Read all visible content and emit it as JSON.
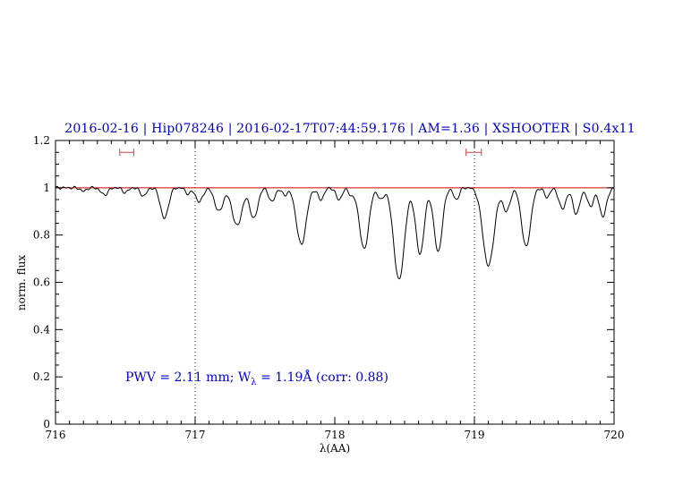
{
  "chart_data": {
    "type": "line",
    "title": "2016-02-16 | Hip078246 | 2016-02-17T07:44:59.176 | AM=1.36 | XSHOOTER | S0.4x11",
    "title_color": "#0000cc",
    "xlabel": "λ(AA)",
    "ylabel": "norm. flux",
    "xlim": [
      716,
      720
    ],
    "ylim": [
      0,
      1.2
    ],
    "x_ticks": [
      716,
      717,
      718,
      719,
      720
    ],
    "x_tick_labels": [
      "716",
      "717",
      "718",
      "719",
      "720"
    ],
    "x_minor_step": 0.1,
    "y_ticks": [
      0,
      0.2,
      0.4,
      0.6,
      0.8,
      1,
      1.2
    ],
    "y_tick_labels": [
      "0",
      "0.2",
      "0.4",
      "0.6",
      "0.8",
      "1",
      "1.2"
    ],
    "y_minor_step": 0.05,
    "grid": "off",
    "spectrum_color": "#000000",
    "continuum_level": 1.0,
    "continuum_color": "#cc0000",
    "dotted_guides_x": [
      717,
      719
    ],
    "guide_color": "#000000",
    "marker_color": "#cc4444",
    "interval_markers": [
      {
        "x1": 716.46,
        "x2": 716.56,
        "y": 1.15
      },
      {
        "x1": 718.94,
        "x2": 719.05,
        "y": 1.15
      }
    ],
    "absorption_lines": [
      [
        716.2,
        0.015,
        0.02
      ],
      [
        716.35,
        0.03,
        0.025
      ],
      [
        716.5,
        0.02,
        0.02
      ],
      [
        716.63,
        0.035,
        0.022
      ],
      [
        716.78,
        0.13,
        0.028
      ],
      [
        716.95,
        0.025,
        0.02
      ],
      [
        717.03,
        0.06,
        0.025
      ],
      [
        717.17,
        0.1,
        0.03
      ],
      [
        717.3,
        0.16,
        0.035
      ],
      [
        717.42,
        0.13,
        0.028
      ],
      [
        717.55,
        0.06,
        0.022
      ],
      [
        717.64,
        0.03,
        0.02
      ],
      [
        717.76,
        0.24,
        0.035
      ],
      [
        717.9,
        0.05,
        0.022
      ],
      [
        718.03,
        0.05,
        0.022
      ],
      [
        718.12,
        0.03,
        0.02
      ],
      [
        718.21,
        0.26,
        0.033
      ],
      [
        718.33,
        0.05,
        0.02
      ],
      [
        718.46,
        0.39,
        0.038
      ],
      [
        718.61,
        0.28,
        0.03
      ],
      [
        718.74,
        0.27,
        0.03
      ],
      [
        718.87,
        0.05,
        0.02
      ],
      [
        719.1,
        0.33,
        0.04
      ],
      [
        719.23,
        0.1,
        0.025
      ],
      [
        719.37,
        0.25,
        0.032
      ],
      [
        719.52,
        0.04,
        0.02
      ],
      [
        719.63,
        0.09,
        0.025
      ],
      [
        719.73,
        0.11,
        0.025
      ],
      [
        719.83,
        0.08,
        0.022
      ],
      [
        719.92,
        0.12,
        0.026
      ]
    ],
    "annotation": {
      "text_prefix": "PWV = 2.11 mm; W",
      "text_sub": "λ",
      "text_suffix": " = 1.19Å (corr: 0.88)",
      "x": 716.5,
      "y": 0.19,
      "color": "#0000cc"
    }
  }
}
